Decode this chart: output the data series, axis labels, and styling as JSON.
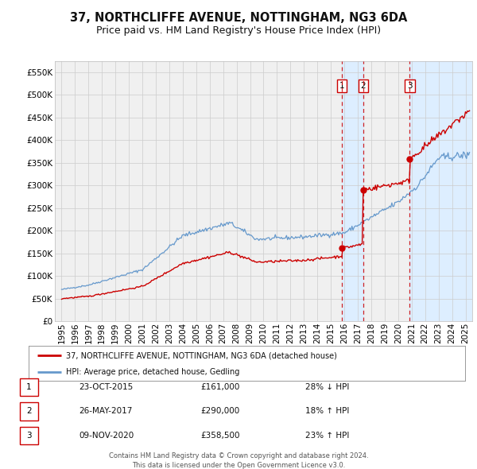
{
  "title": "37, NORTHCLIFFE AVENUE, NOTTINGHAM, NG3 6DA",
  "subtitle": "Price paid vs. HM Land Registry's House Price Index (HPI)",
  "xlim": [
    1994.5,
    2025.5
  ],
  "ylim": [
    0,
    575000
  ],
  "yticks": [
    0,
    50000,
    100000,
    150000,
    200000,
    250000,
    300000,
    350000,
    400000,
    450000,
    500000,
    550000
  ],
  "ytick_labels": [
    "£0",
    "£50K",
    "£100K",
    "£150K",
    "£200K",
    "£250K",
    "£300K",
    "£350K",
    "£400K",
    "£450K",
    "£500K",
    "£550K"
  ],
  "xticks": [
    1995,
    1996,
    1997,
    1998,
    1999,
    2000,
    2001,
    2002,
    2003,
    2004,
    2005,
    2006,
    2007,
    2008,
    2009,
    2010,
    2011,
    2012,
    2013,
    2014,
    2015,
    2016,
    2017,
    2018,
    2019,
    2020,
    2021,
    2022,
    2023,
    2024,
    2025
  ],
  "property_color": "#cc0000",
  "hpi_color": "#6699cc",
  "background_color": "#ffffff",
  "plot_bg_color": "#f0f0f0",
  "shade_color": "#ddeeff",
  "transaction_dates": [
    2015.81,
    2017.4,
    2020.86
  ],
  "transaction_prices": [
    161000,
    290000,
    358500
  ],
  "transaction_labels": [
    "1",
    "2",
    "3"
  ],
  "legend_property": "37, NORTHCLIFFE AVENUE, NOTTINGHAM, NG3 6DA (detached house)",
  "legend_hpi": "HPI: Average price, detached house, Gedling",
  "table_data": [
    [
      "1",
      "23-OCT-2015",
      "£161,000",
      "28% ↓ HPI"
    ],
    [
      "2",
      "26-MAY-2017",
      "£290,000",
      "18% ↑ HPI"
    ],
    [
      "3",
      "09-NOV-2020",
      "£358,500",
      "23% ↑ HPI"
    ]
  ],
  "footer1": "Contains HM Land Registry data © Crown copyright and database right 2024.",
  "footer2": "This data is licensed under the Open Government Licence v3.0.",
  "title_fontsize": 10.5,
  "subtitle_fontsize": 9,
  "tick_fontsize": 7.5,
  "label_fontsize": 7.5
}
